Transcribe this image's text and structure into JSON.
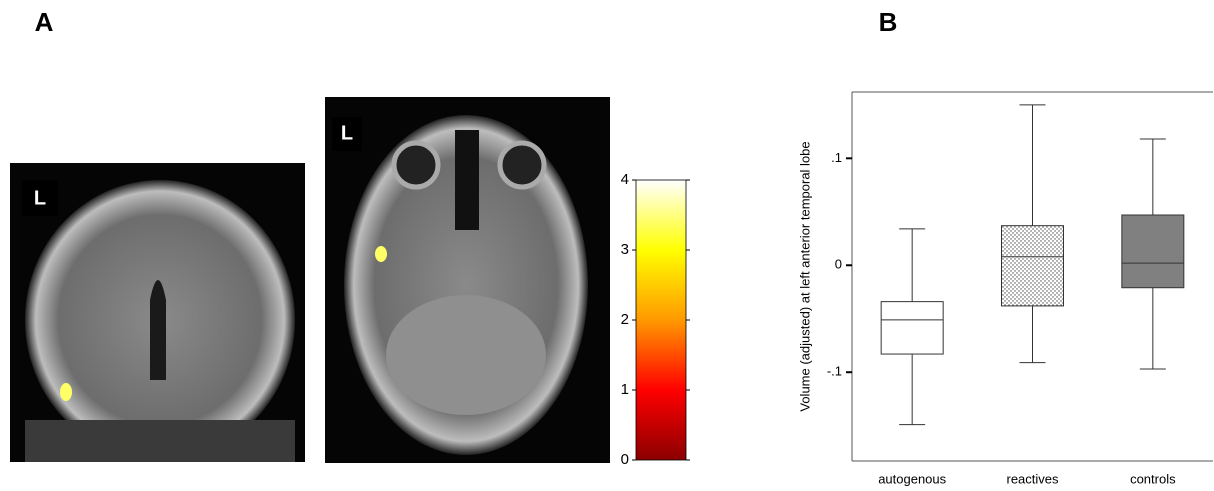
{
  "panel_labels": [
    "A",
    "B"
  ],
  "image_labels": [
    "L",
    "L"
  ],
  "chart_data": [
    {
      "type": "colorbar",
      "ylim": [
        0,
        4
      ],
      "yticks": [
        0,
        1,
        2,
        3,
        4
      ],
      "colors": [
        "#8b0000",
        "#ff0000",
        "#ff9900",
        "#ffff00",
        "#ffffff"
      ]
    },
    {
      "type": "box",
      "ylabel": "Volume (adjusted) at left anterior temporal lobe",
      "categories": [
        "autogenous",
        "reactives",
        "controls"
      ],
      "whisker_high": [
        0.034,
        0.15,
        0.118
      ],
      "q3": [
        -0.034,
        0.037,
        0.047
      ],
      "median": [
        -0.051,
        0.008,
        0.002
      ],
      "q1": [
        -0.083,
        -0.038,
        -0.021
      ],
      "whisker_low": [
        -0.149,
        -0.091,
        -0.097
      ],
      "fills": [
        "#ffffff",
        "dots",
        "#808080"
      ],
      "ylim": [
        -0.183,
        0.162
      ],
      "yticks": [
        {
          "value": -0.1,
          "label": "-.1"
        },
        0,
        {
          "value": 0.1,
          "label": ".1"
        }
      ]
    }
  ]
}
